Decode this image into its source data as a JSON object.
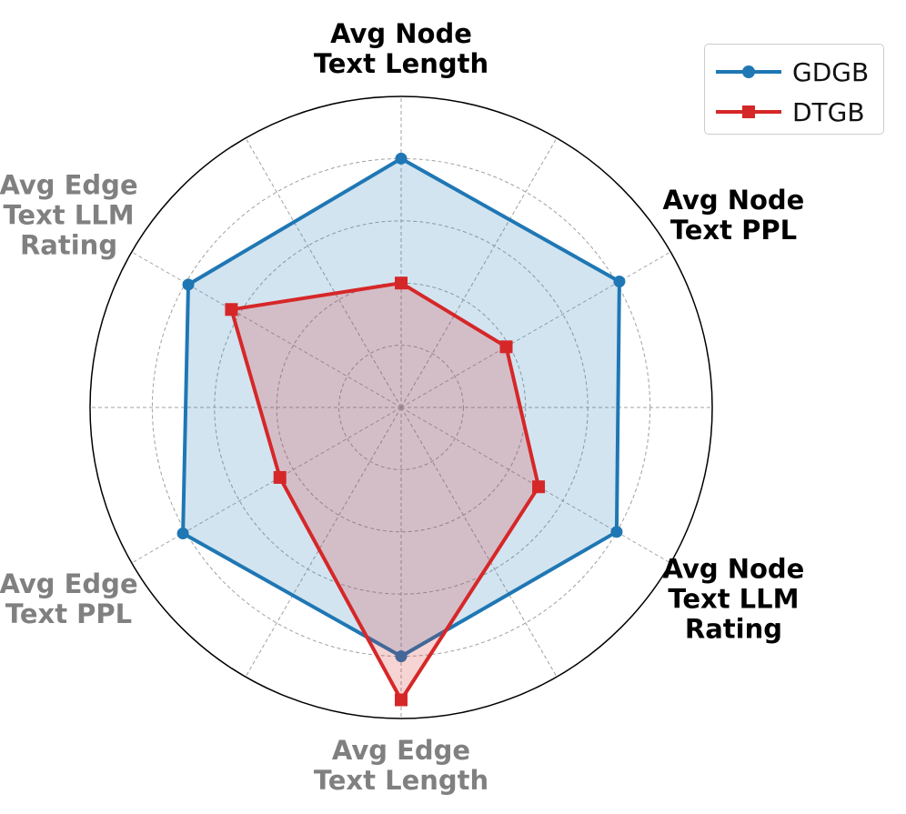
{
  "chart_data": {
    "type": "radar",
    "axes": [
      {
        "label": "Avg Node\nText Length",
        "color": "#000000"
      },
      {
        "label": "Avg Node\nText PPL",
        "color": "#000000"
      },
      {
        "label": "Avg Node\nText LLM\nRating",
        "color": "#000000"
      },
      {
        "label": "Avg Edge\nText Length",
        "color": "#808080"
      },
      {
        "label": "Avg Edge\nText PPL",
        "color": "#808080"
      },
      {
        "label": "Avg Edge\nText LLM\nRating",
        "color": "#808080"
      }
    ],
    "rmax": 1.0,
    "rings": [
      0.2,
      0.4,
      0.6,
      0.8
    ],
    "grid": true,
    "legend": "top-right",
    "series": [
      {
        "name": "GDGB",
        "color": "#1f77b4",
        "marker": "circle",
        "values": [
          0.8,
          0.81,
          0.8,
          0.8,
          0.81,
          0.79
        ]
      },
      {
        "name": "DTGB",
        "color": "#d62728",
        "marker": "square",
        "values": [
          0.4,
          0.39,
          0.51,
          0.94,
          0.45,
          0.63
        ]
      }
    ]
  }
}
